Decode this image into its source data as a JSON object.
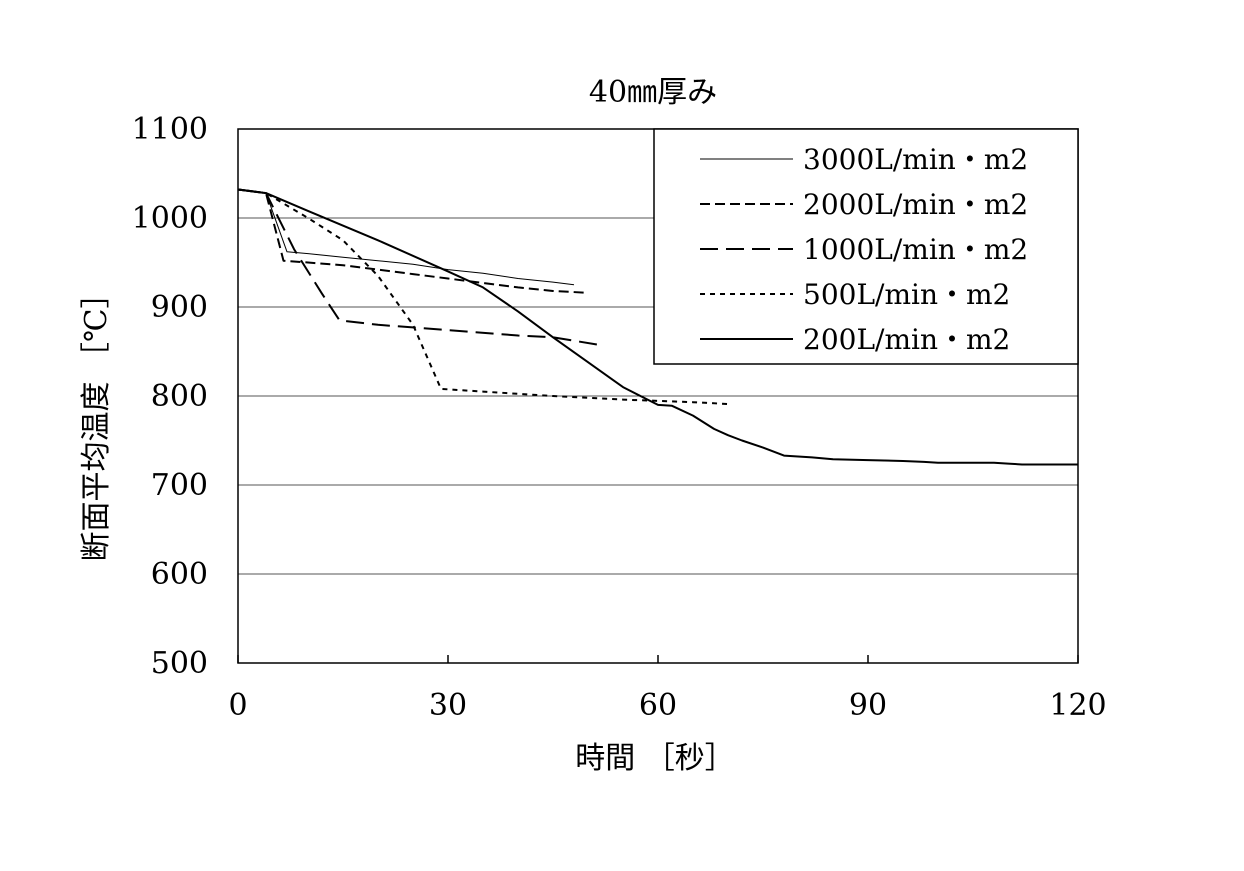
{
  "chart_data": {
    "type": "line",
    "title": "40㎜厚み",
    "xlabel": "時間 ［秒］",
    "ylabel": "断面平均温度 ［℃］",
    "xlim": [
      0,
      120
    ],
    "ylim": [
      500,
      1100
    ],
    "xticks": [
      "0",
      "30",
      "60",
      "90",
      "120"
    ],
    "yticks": [
      "500",
      "600",
      "700",
      "800",
      "900",
      "1000",
      "1100"
    ],
    "grid": "horizontal",
    "legend_position": "top-right",
    "series": [
      {
        "name": "3000L/min・m2",
        "style": "thin-solid",
        "x": [
          0,
          4,
          7,
          10,
          15,
          20,
          25,
          30,
          35,
          40,
          45,
          48
        ],
        "y": [
          1032,
          1028,
          962,
          960,
          956,
          952,
          948,
          942,
          938,
          932,
          928,
          925
        ]
      },
      {
        "name": "2000L/min・m2",
        "style": "medium-dash",
        "x": [
          0,
          4,
          6.5,
          10,
          15,
          20,
          25,
          30,
          35,
          40,
          45,
          50
        ],
        "y": [
          1032,
          1028,
          952,
          950,
          947,
          942,
          937,
          932,
          927,
          922,
          918,
          916
        ]
      },
      {
        "name": "1000L/min・m2",
        "style": "long-dash",
        "x": [
          0,
          4,
          8,
          12,
          14.5,
          20,
          30,
          40,
          45,
          52
        ],
        "y": [
          1032,
          1028,
          965,
          915,
          885,
          880,
          874,
          868,
          866,
          857
        ]
      },
      {
        "name": "500L/min・m2",
        "style": "short-dash",
        "x": [
          0,
          4,
          10,
          15,
          20,
          25,
          29,
          35,
          45,
          55,
          65,
          70
        ],
        "y": [
          1032,
          1028,
          1000,
          975,
          935,
          880,
          808,
          805,
          800,
          796,
          793,
          791
        ]
      },
      {
        "name": "200L/min・m2",
        "style": "solid",
        "x": [
          0,
          4,
          10,
          20,
          30,
          35,
          40,
          45,
          50,
          55,
          60,
          62,
          65,
          68,
          70,
          72,
          75,
          78,
          82,
          85,
          90,
          95,
          98,
          100,
          105,
          108,
          110,
          112,
          115,
          120
        ],
        "y": [
          1032,
          1028,
          1008,
          975,
          940,
          922,
          895,
          866,
          838,
          810,
          790,
          789,
          778,
          763,
          756,
          750,
          742,
          733,
          731,
          729,
          728,
          727,
          726,
          725,
          725,
          725,
          724,
          723,
          723,
          723
        ]
      }
    ]
  }
}
